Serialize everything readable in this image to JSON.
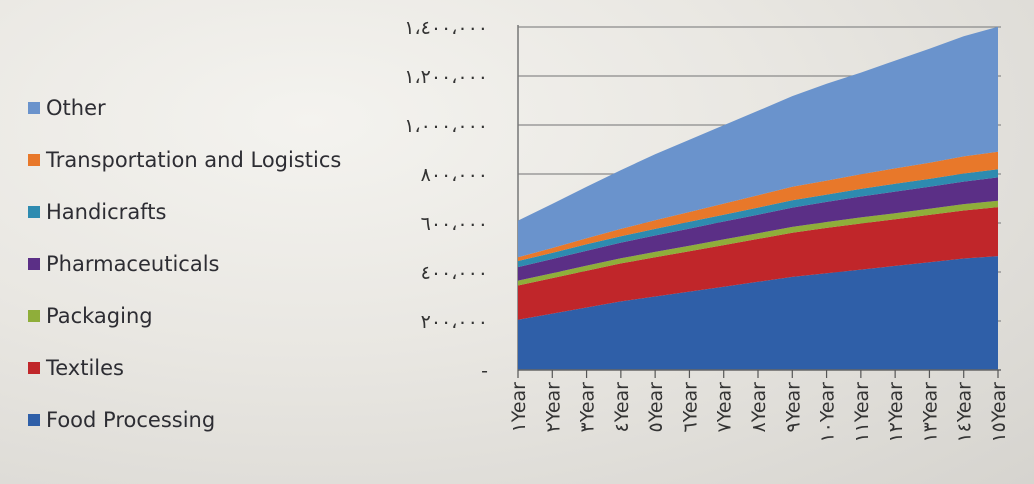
{
  "chart_data": {
    "type": "area",
    "stacked": true,
    "categories": [
      "١Year",
      "٢Year",
      "٣Year",
      "٤Year",
      "٥Year",
      "٦Year",
      "٧Year",
      "٨Year",
      "٩Year",
      "١٠Year",
      "١١Year",
      "١٢Year",
      "١٣Year",
      "١٤Year",
      "١٥Year"
    ],
    "y_ticks": [
      "-",
      "٢٠٠،٠٠٠",
      "٤٠٠،٠٠٠",
      "٦٠٠،٠٠٠",
      "٨٠٠،٠٠٠",
      "١،٠٠٠،٠٠٠",
      "١،٢٠٠،٠٠٠",
      "١،٤٠٠،٠٠٠"
    ],
    "ylim": [
      0,
      1400000
    ],
    "grid": true,
    "legend_position": "left",
    "series": [
      {
        "name": "Food Processing",
        "color": "#2f5fa8",
        "values": [
          205000,
          230000,
          255000,
          280000,
          300000,
          320000,
          340000,
          360000,
          380000,
          395000,
          410000,
          425000,
          440000,
          455000,
          465000
        ]
      },
      {
        "name": "Textiles",
        "color": "#c0262a",
        "values": [
          140000,
          145000,
          150000,
          155000,
          160000,
          165000,
          170000,
          175000,
          180000,
          185000,
          188000,
          190000,
          193000,
          196000,
          200000
        ]
      },
      {
        "name": "Packaging",
        "color": "#8fae3a",
        "values": [
          20000,
          20000,
          21000,
          21000,
          22000,
          22000,
          23000,
          23000,
          24000,
          24000,
          25000,
          25000,
          25000,
          26000,
          26000
        ]
      },
      {
        "name": "Pharmaceuticals",
        "color": "#5b2f86",
        "values": [
          55000,
          58000,
          61000,
          64000,
          67000,
          70000,
          73000,
          76000,
          79000,
          82000,
          85000,
          88000,
          90000,
          92000,
          95000
        ]
      },
      {
        "name": "Handicrafts",
        "color": "#2e8bb0",
        "values": [
          25000,
          25000,
          26000,
          26000,
          27000,
          28000,
          28000,
          29000,
          30000,
          30000,
          31000,
          32000,
          32000,
          33000,
          33000
        ]
      },
      {
        "name": "Transportation and Logistics",
        "color": "#e8782a",
        "values": [
          15000,
          20000,
          25000,
          30000,
          35000,
          40000,
          45000,
          50000,
          55000,
          57000,
          60000,
          63000,
          66000,
          70000,
          72000
        ]
      },
      {
        "name": "Other",
        "color": "#6a93cc",
        "values": [
          150000,
          180000,
          210000,
          240000,
          270000,
          295000,
          320000,
          345000,
          370000,
          395000,
          415000,
          440000,
          465000,
          490000,
          510000
        ]
      }
    ]
  },
  "legend": [
    {
      "label": "Other",
      "color": "#6a93cc"
    },
    {
      "label": "Transportation and Logistics",
      "color": "#e8782a"
    },
    {
      "label": "Handicrafts",
      "color": "#2e8bb0"
    },
    {
      "label": "Pharmaceuticals",
      "color": "#5b2f86"
    },
    {
      "label": "Packaging",
      "color": "#8fae3a"
    },
    {
      "label": "Textiles",
      "color": "#c0262a"
    },
    {
      "label": "Food Processing",
      "color": "#2f5fa8"
    }
  ]
}
